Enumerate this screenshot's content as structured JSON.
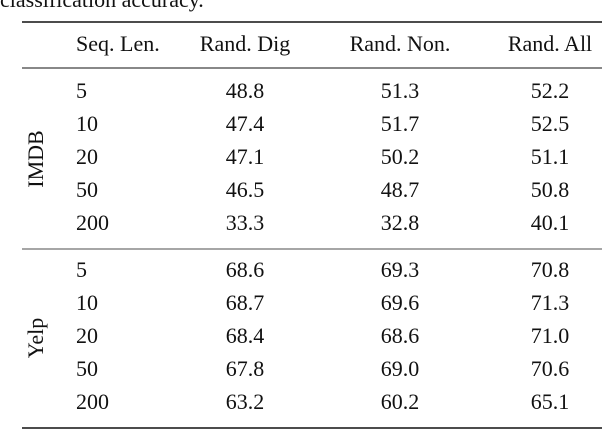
{
  "caption": "classification accuracy.",
  "table": {
    "header": [
      "Seq. Len.",
      "Rand. Dig",
      "Rand. Non.",
      "Rand. All"
    ],
    "groups": [
      {
        "label": "IMDB",
        "rows": [
          [
            "5",
            "48.8",
            "51.3",
            "52.2"
          ],
          [
            "10",
            "47.4",
            "51.7",
            "52.5"
          ],
          [
            "20",
            "47.1",
            "50.2",
            "51.1"
          ],
          [
            "50",
            "46.5",
            "48.7",
            "50.8"
          ],
          [
            "200",
            "33.3",
            "32.8",
            "40.1"
          ]
        ]
      },
      {
        "label": "Yelp",
        "rows": [
          [
            "5",
            "68.6",
            "69.3",
            "70.8"
          ],
          [
            "10",
            "68.7",
            "69.6",
            "71.3"
          ],
          [
            "20",
            "68.4",
            "68.6",
            "71.0"
          ],
          [
            "50",
            "67.8",
            "69.0",
            "70.6"
          ],
          [
            "200",
            "63.2",
            "60.2",
            "65.1"
          ]
        ]
      }
    ]
  }
}
